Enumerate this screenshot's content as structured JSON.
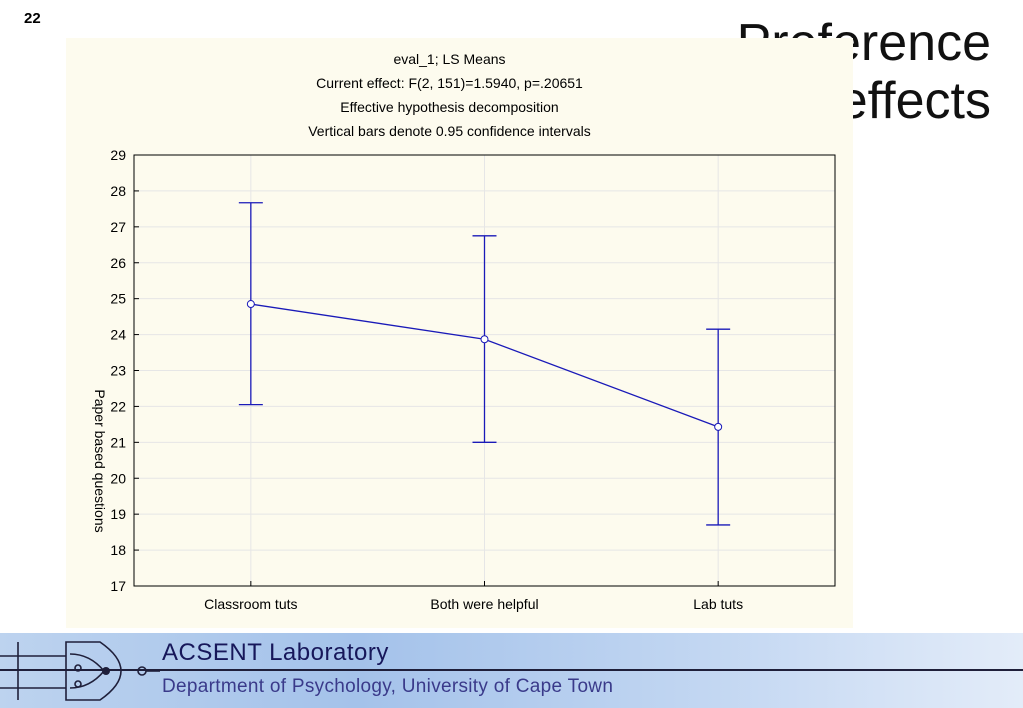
{
  "slide": {
    "number": "22",
    "title_line1": "Preference",
    "title_line2": "effects"
  },
  "footer": {
    "lab_name": "ACSENT Laboratory",
    "department": "Department of Psychology, University of Cape Town"
  },
  "chart_data": {
    "type": "line",
    "title_lines": [
      "eval_1; LS Means",
      "Current effect: F(2, 151)=1.5940, p=.20651",
      "Effective hypothesis decomposition",
      "Vertical bars denote 0.95 confidence intervals"
    ],
    "xlabel": "",
    "ylabel": "Paper based questions",
    "categories": [
      "Classroom tuts",
      "Both were helpful",
      "Lab tuts"
    ],
    "series": [
      {
        "values": [
          24.85,
          23.87,
          21.43
        ],
        "ci_lower": [
          22.05,
          21.0,
          18.7
        ],
        "ci_upper": [
          27.67,
          26.75,
          24.15
        ],
        "color": "#1a1ab8"
      }
    ],
    "ylim": [
      17,
      29
    ],
    "yticks": [
      "17",
      "18",
      "19",
      "20",
      "21",
      "22",
      "23",
      "24",
      "25",
      "26",
      "27",
      "28",
      "29"
    ],
    "grid": true,
    "colors": {
      "series": "#1a1ab8",
      "panel": "#fdfbee"
    }
  }
}
